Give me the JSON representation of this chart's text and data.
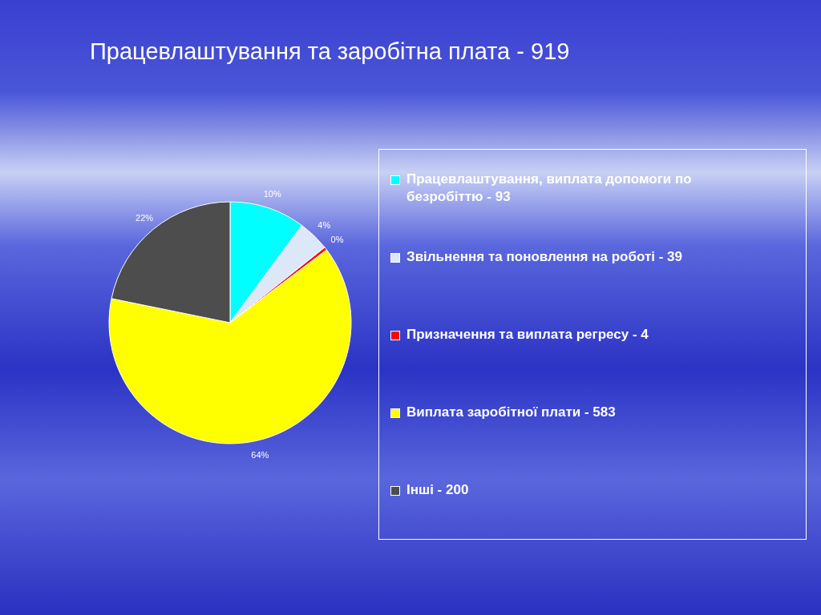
{
  "chart_data": {
    "type": "pie",
    "title": "Працевлаштування та заробітна плата - 919",
    "categories": [
      "Працевлаштування, виплата допомоги по безробіттю - 93",
      "Звільнення та поновлення на роботі - 39",
      "Призначення та виплата регресу - 4",
      "Виплата заробітної плати - 583",
      "Інші - 200"
    ],
    "values": [
      10.1,
      4.2,
      0.4,
      63.5,
      21.8
    ],
    "colors": [
      "#00ffff",
      "#dce8f8",
      "#ff0000",
      "#ffff00",
      "#4d4d4d"
    ],
    "value_labels": [
      "10%",
      "4%",
      "0%",
      "64%",
      "22%"
    ],
    "legend": "right"
  }
}
